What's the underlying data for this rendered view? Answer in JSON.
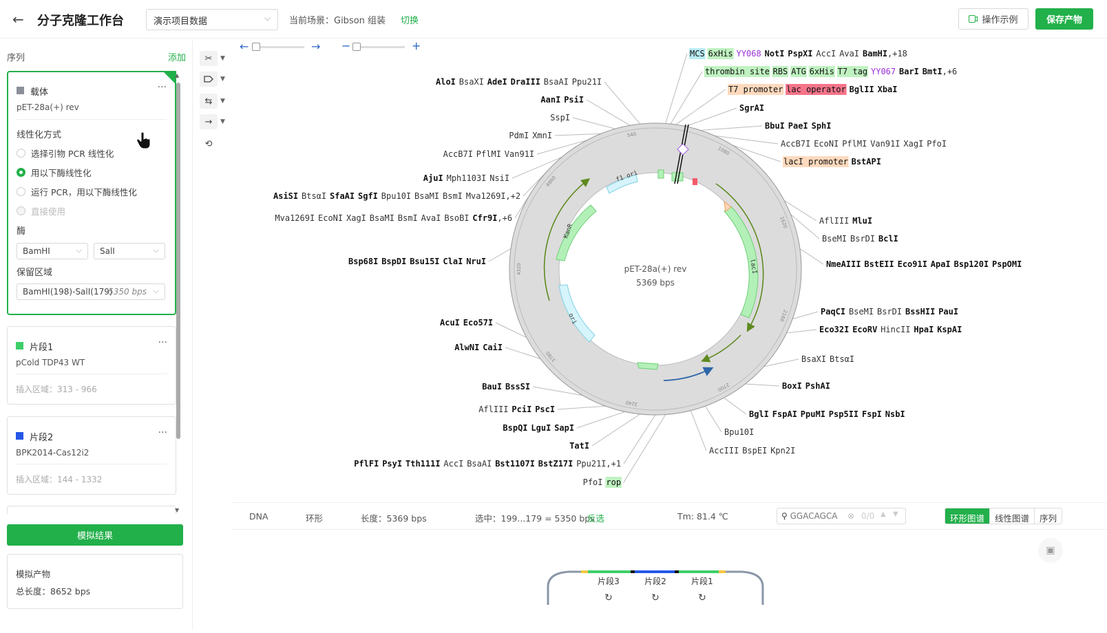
{
  "header": {
    "title": "分子克隆工作台",
    "project": "演示项目数据",
    "scene_label": "当前场景：Gibson 组装",
    "switch_label": "切换",
    "example_label": "操作示例",
    "save_label": "保存产物"
  },
  "sidebar": {
    "heading": "序列",
    "add_label": "添加",
    "vector": {
      "type": "载体",
      "name": "pET-28a(+) rev",
      "color": "#8a8f99",
      "linearization_label": "线性化方式",
      "options": [
        "选择引物 PCR 线性化",
        "用以下酶线性化",
        "运行 PCR，用以下酶线性化",
        "直接使用"
      ],
      "selected_option": 1,
      "enzyme_label": "酶",
      "enzyme1": "BamHI",
      "enzyme2": "SalI",
      "keep_label": "保留区域",
      "keep_value": "BamHI(198)-SalI(179)",
      "keep_size": "5350 bps"
    },
    "fragments": [
      {
        "type": "片段1",
        "name": "pCold TDP43 WT",
        "range": "插入区域：313 - 966",
        "color": "#3ecf6a"
      },
      {
        "type": "片段2",
        "name": "BPK2014-Cas12i2",
        "range": "插入区域：144 - 1332",
        "color": "#2457e6"
      }
    ],
    "simulate_label": "模拟结果",
    "product_title": "模拟产物",
    "product_length": "总长度：8652 bps"
  },
  "map": {
    "name": "pET-28a(+) rev",
    "size": "5369 bps",
    "ticks": [
      "540",
      "1080",
      "1620",
      "2160",
      "2700",
      "3240",
      "3780",
      "4320",
      "4860"
    ],
    "features": {
      "f1ori": "f1 ori",
      "kanr": "KanR",
      "laci": "lacI",
      "ori": "ori"
    },
    "labels_right": [
      {
        "parts": [
          [
            "MCS",
            "feat-cyan"
          ],
          [
            "6xHis",
            "feat-green"
          ],
          [
            "YY068",
            "purple"
          ],
          [
            "NotI",
            "b"
          ],
          [
            "PspXI",
            "b"
          ],
          [
            "AccI",
            "n"
          ],
          [
            "AvaI",
            "n"
          ],
          [
            "BamHI",
            "b"
          ],
          [
            ",+18",
            "n"
          ]
        ]
      },
      {
        "parts": [
          [
            "thrombin site",
            "feat-green"
          ],
          [
            "RBS",
            "feat-green"
          ],
          [
            "ATG",
            "feat-green"
          ],
          [
            "6xHis",
            "feat-green"
          ],
          [
            "T7 tag",
            "feat-green"
          ],
          [
            "YY067",
            "purple"
          ],
          [
            "BarI",
            "b"
          ],
          [
            "BmtI",
            "b"
          ],
          [
            ",+6",
            "n"
          ]
        ]
      },
      {
        "parts": [
          [
            "T7 promoter",
            "feat-orange"
          ],
          [
            "lac operator",
            "feat-red"
          ],
          [
            "BglII",
            "b"
          ],
          [
            "XbaI",
            "b"
          ]
        ]
      },
      {
        "parts": [
          [
            "SgrAI",
            "b"
          ]
        ]
      },
      {
        "parts": [
          [
            "BbuI",
            "b"
          ],
          [
            "PaeI",
            "b"
          ],
          [
            "SphI",
            "b"
          ]
        ]
      },
      {
        "parts": [
          [
            "AccB7I",
            "n"
          ],
          [
            "EcoNI",
            "n"
          ],
          [
            "PflMI",
            "n"
          ],
          [
            "Van91I",
            "n"
          ],
          [
            "XagI",
            "n"
          ],
          [
            "PfoI",
            "n"
          ]
        ]
      },
      {
        "parts": [
          [
            "lacI promoter",
            "feat-orange"
          ],
          [
            "BstAPI",
            "b"
          ]
        ]
      },
      {
        "parts": [
          [
            "AflIII",
            "n"
          ],
          [
            "MluI",
            "b"
          ]
        ]
      },
      {
        "parts": [
          [
            "BseMI",
            "n"
          ],
          [
            "BsrDI",
            "n"
          ],
          [
            "BclI",
            "b"
          ]
        ]
      },
      {
        "parts": [
          [
            "NmeAIII",
            "b"
          ],
          [
            "BstEII",
            "b"
          ],
          [
            "Eco91I",
            "b"
          ],
          [
            "ApaI",
            "b"
          ],
          [
            "Bsp120I",
            "b"
          ],
          [
            "PspOMI",
            "b"
          ]
        ]
      },
      {
        "parts": [
          [
            "PaqCI",
            "b"
          ],
          [
            "BseMI",
            "n"
          ],
          [
            "BsrDI",
            "n"
          ],
          [
            "BssHII",
            "b"
          ],
          [
            "PauI",
            "b"
          ]
        ]
      },
      {
        "parts": [
          [
            "Eco32I",
            "b"
          ],
          [
            "EcoRV",
            "b"
          ],
          [
            "HincII",
            "n"
          ],
          [
            "HpaI",
            "b"
          ],
          [
            "KspAI",
            "b"
          ]
        ]
      },
      {
        "parts": [
          [
            "BsaXI",
            "n"
          ],
          [
            "BtsαI",
            "n"
          ]
        ]
      },
      {
        "parts": [
          [
            "BoxI",
            "b"
          ],
          [
            "PshAI",
            "b"
          ]
        ]
      },
      {
        "parts": [
          [
            "BglI",
            "b"
          ],
          [
            "FspAI",
            "b"
          ],
          [
            "PpuMI",
            "b"
          ],
          [
            "Psp5II",
            "b"
          ],
          [
            "FspI",
            "b"
          ],
          [
            "NsbI",
            "b"
          ]
        ]
      },
      {
        "parts": [
          [
            "Bpu10I",
            "n"
          ]
        ]
      },
      {
        "parts": [
          [
            "AccIII",
            "n"
          ],
          [
            "BspEI",
            "n"
          ],
          [
            "Kpn2I",
            "n"
          ]
        ]
      }
    ],
    "labels_left": [
      {
        "parts": [
          [
            "AloI",
            "b"
          ],
          [
            "BsaXI",
            "n"
          ],
          [
            "AdeI",
            "b"
          ],
          [
            "DraIII",
            "b"
          ],
          [
            "BsaAI",
            "n"
          ],
          [
            "Ppu21I",
            "n"
          ]
        ]
      },
      {
        "parts": [
          [
            "AanI",
            "b"
          ],
          [
            "PsiI",
            "b"
          ]
        ]
      },
      {
        "parts": [
          [
            "SspI",
            "n"
          ]
        ]
      },
      {
        "parts": [
          [
            "PdmI",
            "n"
          ],
          [
            "XmnI",
            "n"
          ]
        ]
      },
      {
        "parts": [
          [
            "AccB7I",
            "n"
          ],
          [
            "PflMI",
            "n"
          ],
          [
            "Van91I",
            "n"
          ]
        ]
      },
      {
        "parts": [
          [
            "AjuI",
            "b"
          ],
          [
            "Mph1103I",
            "n"
          ],
          [
            "NsiI",
            "n"
          ]
        ]
      },
      {
        "parts": [
          [
            "AsiSI",
            "b"
          ],
          [
            "BtsαI",
            "n"
          ],
          [
            "SfaAI",
            "b"
          ],
          [
            "SgfI",
            "b"
          ],
          [
            "Bpu10I",
            "n"
          ],
          [
            "BsaMI",
            "n"
          ],
          [
            "BsmI",
            "n"
          ],
          [
            "Mva1269I",
            "n"
          ],
          [
            ",+2",
            "n"
          ]
        ]
      },
      {
        "parts": [
          [
            "Mva1269I",
            "n"
          ],
          [
            "EcoNI",
            "n"
          ],
          [
            "XagI",
            "n"
          ],
          [
            "BsaMI",
            "n"
          ],
          [
            "BsmI",
            "n"
          ],
          [
            "AvaI",
            "n"
          ],
          [
            "BsoBI",
            "n"
          ],
          [
            "Cfr9I",
            "b"
          ],
          [
            ",+6",
            "n"
          ]
        ]
      },
      {
        "parts": [
          [
            "Bsp68I",
            "b"
          ],
          [
            "BspDI",
            "b"
          ],
          [
            "Bsu15I",
            "b"
          ],
          [
            "ClaI",
            "b"
          ],
          [
            "NruI",
            "b"
          ]
        ]
      },
      {
        "parts": [
          [
            "AcuI",
            "b"
          ],
          [
            "Eco57I",
            "b"
          ]
        ]
      },
      {
        "parts": [
          [
            "AlwNI",
            "b"
          ],
          [
            "CaiI",
            "b"
          ]
        ]
      },
      {
        "parts": [
          [
            "BauI",
            "b"
          ],
          [
            "BssSI",
            "b"
          ]
        ]
      },
      {
        "parts": [
          [
            "AflIII",
            "n"
          ],
          [
            "PciI",
            "b"
          ],
          [
            "PscI",
            "b"
          ]
        ]
      },
      {
        "parts": [
          [
            "BspQI",
            "b"
          ],
          [
            "LguI",
            "b"
          ],
          [
            "SapI",
            "b"
          ]
        ]
      },
      {
        "parts": [
          [
            "TatI",
            "b"
          ]
        ]
      },
      {
        "parts": [
          [
            "PflFI",
            "b"
          ],
          [
            "PsyI",
            "b"
          ],
          [
            "Tth111I",
            "b"
          ],
          [
            "AccI",
            "n"
          ],
          [
            "BsaAI",
            "n"
          ],
          [
            "Bst1107I",
            "b"
          ],
          [
            "BstZ17I",
            "b"
          ],
          [
            "Ppu21I",
            "n"
          ],
          [
            ",+1",
            "n"
          ]
        ]
      },
      {
        "parts": [
          [
            "PfoI",
            "n"
          ],
          [
            "rop",
            "feat-green"
          ]
        ]
      }
    ]
  },
  "status": {
    "type": "DNA",
    "topology": "环形",
    "length": "长度：5369 bps",
    "selection": "选中：199...179 = 5350 bps",
    "invert": "反选",
    "tm": "Tm: 81.4 ℃",
    "search_value": "GGACAGCA",
    "search_count": "0/0",
    "tabs": [
      "环形图谱",
      "线性图谱",
      "序列"
    ]
  },
  "assembly": {
    "labels": [
      "片段3",
      "片段2",
      "片段1"
    ]
  },
  "colors": {
    "accent": "#22b04a",
    "fragment1": "#3ecf6a",
    "fragment2": "#2457e6",
    "purple": "#9b30d9"
  }
}
